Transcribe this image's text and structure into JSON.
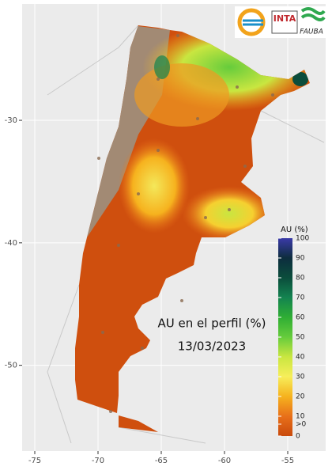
{
  "map": {
    "annotation": "AU en el perfil (%)",
    "date": "13/03/2023",
    "logos": [
      "INTA",
      "FAUBA"
    ],
    "xlim": [
      -76,
      -52
    ],
    "ylim": [
      -57,
      -20.5
    ],
    "xticks": [
      -75,
      -70,
      -65,
      -60,
      -55
    ],
    "yticks": [
      -30,
      -40,
      -50
    ],
    "grid": true,
    "legend": {
      "title": "AU (%)",
      "ticks": [
        0,
        {
          "value": 6,
          "label": ">0"
        },
        10,
        20,
        30,
        40,
        50,
        60,
        70,
        80,
        90,
        100
      ],
      "colors": [
        {
          "value": 0,
          "color": "#c94a0c"
        },
        {
          "value": 10,
          "color": "#e8701a"
        },
        {
          "value": 20,
          "color": "#f6b21e"
        },
        {
          "value": 30,
          "color": "#f7ee5a"
        },
        {
          "value": 40,
          "color": "#c9e640"
        },
        {
          "value": 50,
          "color": "#66cc3c"
        },
        {
          "value": 60,
          "color": "#2fae34"
        },
        {
          "value": 70,
          "color": "#138350"
        },
        {
          "value": 80,
          "color": "#0b4d3c"
        },
        {
          "value": 90,
          "color": "#0d2d3e"
        },
        {
          "value": 100,
          "color": "#3a3aa8"
        }
      ]
    }
  }
}
